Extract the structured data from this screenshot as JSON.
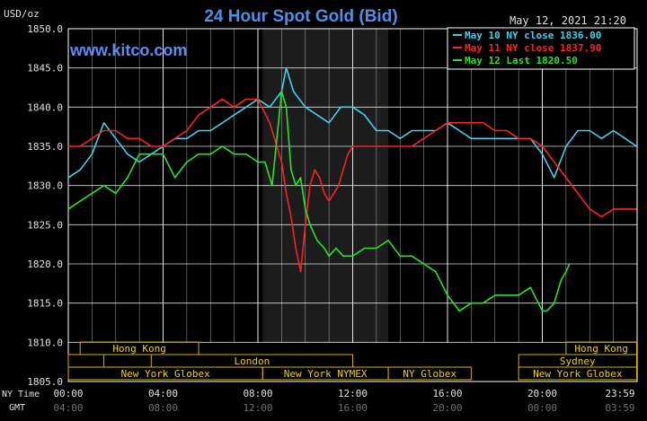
{
  "chart_data": {
    "type": "line",
    "title": "24 Hour Spot Gold (Bid)",
    "unit_label": "USD/oz",
    "timestamp": "May 12, 2021 21:20",
    "watermark": "www.kitco.com",
    "ylim": [
      1805,
      1850
    ],
    "y_ticks": [
      "1850.0",
      "1845.0",
      "1840.0",
      "1835.0",
      "1830.0",
      "1825.0",
      "1820.0",
      "1815.0",
      "1810.0",
      "1805.0"
    ],
    "x_ticks_ny": [
      "00:00",
      "04:00",
      "08:00",
      "12:00",
      "16:00",
      "20:00",
      "23:59"
    ],
    "x_ticks_gmt": [
      "04:00",
      "08:00",
      "12:00",
      "16:00",
      "20:00",
      "00:00",
      "03:59"
    ],
    "x_row_label_ny": "NY Time",
    "x_row_label_gmt": "GMT",
    "shaded_session_hours": [
      8.2,
      13.5
    ],
    "legend": [
      {
        "label": "May 10 NY close 1836.00",
        "color": "#3fd2ee"
      },
      {
        "label": "May 11 NY close 1837.90",
        "color": "#ff2020"
      },
      {
        "label": "May 12 Last 1820.50",
        "color": "#22e822"
      }
    ],
    "series": [
      {
        "name": "May 10 NY close 1836.00",
        "color": "#3fd2ee",
        "x": [
          0,
          0.5,
          1,
          1.5,
          2,
          2.5,
          3,
          3.5,
          4,
          4.5,
          5,
          5.5,
          6,
          6.5,
          7,
          7.5,
          8,
          8.5,
          9,
          9.2,
          9.5,
          10,
          10.5,
          11,
          11.5,
          12,
          12.5,
          13,
          13.5,
          14,
          14.5,
          15,
          15.5,
          16,
          16.5,
          17,
          17.5,
          18,
          18.5,
          19,
          19.5,
          20,
          20.5,
          21,
          21.5,
          22,
          22.5,
          23,
          23.5,
          23.98
        ],
        "y": [
          1831,
          1832,
          1834,
          1838,
          1836,
          1834,
          1833,
          1834,
          1835,
          1836,
          1836,
          1837,
          1837,
          1838,
          1839,
          1840,
          1841,
          1840,
          1842,
          1845,
          1842,
          1840,
          1839,
          1838,
          1840,
          1840,
          1839,
          1837,
          1837,
          1836,
          1837,
          1837,
          1837,
          1838,
          1837,
          1836,
          1836,
          1836,
          1836,
          1836,
          1836,
          1834,
          1831,
          1835,
          1837,
          1837,
          1836,
          1837,
          1836,
          1835
        ]
      },
      {
        "name": "May 11 NY close 1837.90",
        "color": "#ff2020",
        "x": [
          0,
          0.5,
          1,
          1.5,
          2,
          2.5,
          3,
          3.5,
          4,
          4.5,
          5,
          5.5,
          6,
          6.5,
          7,
          7.5,
          8,
          8.5,
          9,
          9.2,
          9.4,
          9.6,
          9.8,
          10,
          10.2,
          10.4,
          10.6,
          10.8,
          11,
          11.2,
          11.4,
          11.6,
          11.8,
          12,
          12.5,
          13,
          13.5,
          14,
          14.5,
          15,
          15.5,
          16,
          16.5,
          17,
          17.5,
          18,
          18.5,
          19,
          19.5,
          20,
          20.5,
          21,
          21.5,
          22,
          22.5,
          23,
          23.5,
          23.98
        ],
        "y": [
          1835,
          1835,
          1836,
          1837,
          1837,
          1836,
          1836,
          1835,
          1835,
          1836,
          1837,
          1839,
          1840,
          1841,
          1840,
          1841,
          1841,
          1838,
          1833,
          1829,
          1826,
          1822,
          1819,
          1825,
          1830,
          1832,
          1831,
          1829,
          1828,
          1829,
          1830,
          1832,
          1834,
          1835,
          1835,
          1835,
          1835,
          1835,
          1835,
          1836,
          1837,
          1838,
          1838,
          1838,
          1838,
          1837,
          1837,
          1836,
          1836,
          1835,
          1833,
          1831,
          1829,
          1827,
          1826,
          1827,
          1827,
          1827
        ]
      },
      {
        "name": "May 12 Last 1820.50",
        "color": "#22e822",
        "x": [
          0,
          0.5,
          1,
          1.5,
          2,
          2.5,
          3,
          3.5,
          4,
          4.5,
          5,
          5.5,
          6,
          6.5,
          7,
          7.5,
          8,
          8.3,
          8.6,
          8.8,
          9,
          9.2,
          9.4,
          9.6,
          9.8,
          10,
          10.2,
          10.5,
          10.8,
          11,
          11.3,
          11.6,
          12,
          12.5,
          13,
          13.5,
          14,
          14.5,
          15,
          15.5,
          16,
          16.5,
          17,
          17.5,
          18,
          18.5,
          19,
          19.5,
          20,
          20.2,
          20.5,
          20.8,
          21,
          21.15
        ],
        "y": [
          1827,
          1828,
          1829,
          1830,
          1829,
          1831,
          1834,
          1834,
          1834,
          1831,
          1833,
          1834,
          1834,
          1835,
          1834,
          1834,
          1833,
          1833,
          1830,
          1836,
          1842,
          1840,
          1832,
          1830,
          1831,
          1827,
          1825,
          1823,
          1822,
          1821,
          1822,
          1821,
          1821,
          1822,
          1822,
          1823,
          1821,
          1821,
          1820,
          1819,
          1816,
          1814,
          1815,
          1815,
          1816,
          1816,
          1816,
          1817,
          1814,
          1814,
          1815,
          1818,
          1819,
          1820
        ]
      }
    ],
    "session_bands": [
      {
        "name": "Hong Kong",
        "start": 0.5,
        "end": 5.5,
        "row": 0
      },
      {
        "name": "Hong Kong",
        "start": 21,
        "end": 23.98,
        "row": 0
      },
      {
        "name": "",
        "start": 0,
        "end": 1.5,
        "row": 1
      },
      {
        "name": "London",
        "start": 3.5,
        "end": 12,
        "row": 1
      },
      {
        "name": "Sydney",
        "start": 19,
        "end": 23.98,
        "row": 1
      },
      {
        "name": "New York Globex",
        "start": 0,
        "end": 8.2,
        "row": 2
      },
      {
        "name": "New York NYMEX",
        "start": 8.2,
        "end": 13.5,
        "row": 2
      },
      {
        "name": "NY Globex",
        "start": 13.5,
        "end": 17,
        "row": 2
      },
      {
        "name": "New York Globex",
        "start": 19,
        "end": 23.98,
        "row": 2
      }
    ]
  }
}
